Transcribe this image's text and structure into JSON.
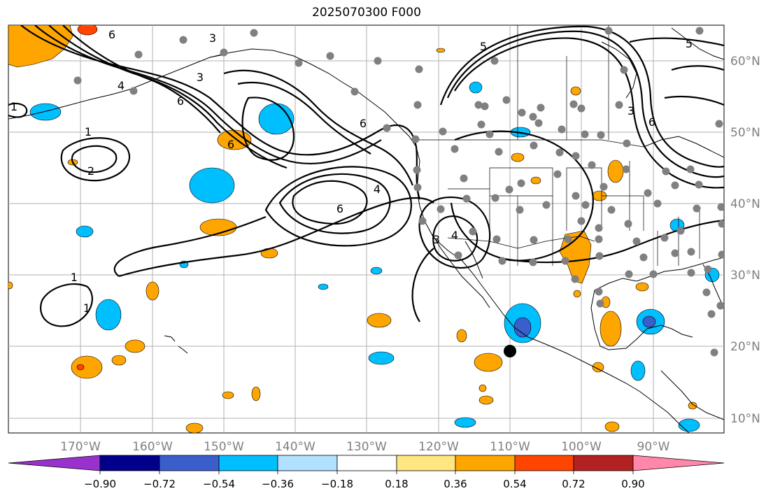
{
  "title": "2025070300 F000",
  "map": {
    "lon_labels": [
      "170°W",
      "160°W",
      "150°W",
      "140°W",
      "130°W",
      "120°W",
      "110°W",
      "100°W",
      "90°W"
    ],
    "lat_labels": [
      "60°N",
      "50°N",
      "40°N",
      "30°N",
      "20°N",
      "10°N"
    ],
    "contour_labels": [
      "3",
      "4",
      "6",
      "1",
      "2",
      "6",
      "6",
      "4",
      "6",
      "3",
      "4",
      "5",
      "6",
      "3",
      "1",
      "1",
      "1",
      "5",
      "3",
      "6"
    ],
    "contour_color": "#000000",
    "coastline_color": "#000000",
    "gridline_color": "#b0b0b0",
    "station_color": "#808080",
    "marker_color": "#000000"
  },
  "colorbar": {
    "tick_labels": [
      "−0.90",
      "−0.72",
      "−0.54",
      "−0.36",
      "−0.18",
      "0.18",
      "0.36",
      "0.54",
      "0.72",
      "0.90"
    ],
    "colors": [
      "#9932cc",
      "#00008b",
      "#3a5fcd",
      "#00bfff",
      "#b0e2ff",
      "#ffffff",
      "#ffe680",
      "#ffa500",
      "#ff4500",
      "#b22222",
      "#ff88aa"
    ]
  }
}
